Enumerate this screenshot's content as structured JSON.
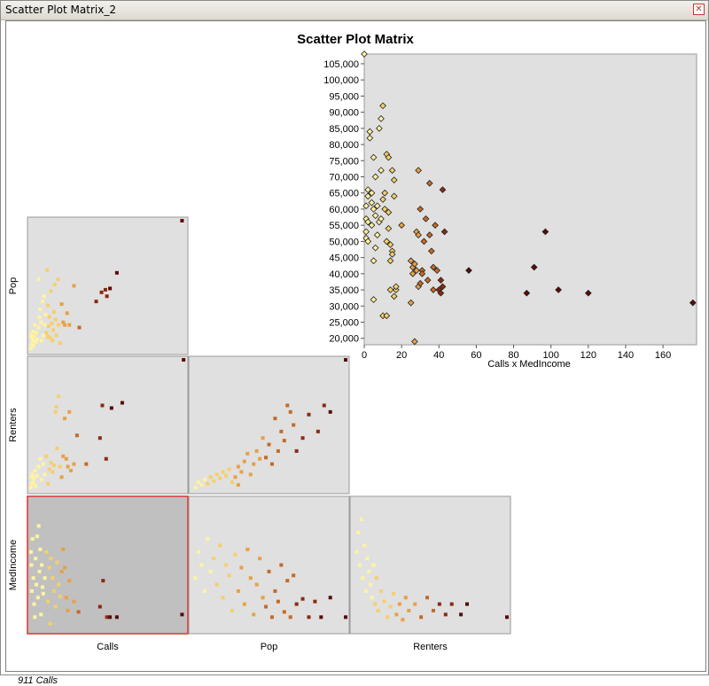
{
  "window": {
    "title": "Scatter Plot Matrix_2"
  },
  "status": {
    "label": "911 Calls"
  },
  "colors": {
    "panel_bg": "#e0e0e0",
    "selected_panel_bg": "#c0c0c0",
    "selected_border": "#e03030",
    "ramp": [
      "#fff3a0",
      "#f5cf6a",
      "#e8a045",
      "#c46a28",
      "#8a2a12",
      "#5a0a05"
    ]
  },
  "chart_data": [
    {
      "type": "scatter",
      "title": "Scatter Plot Matrix",
      "xlabel": "Calls x MedIncome",
      "ylabel": "",
      "xlim": [
        0,
        178
      ],
      "ylim": [
        18000,
        108000
      ],
      "xticks": [
        "0",
        "20",
        "40",
        "60",
        "80",
        "100",
        "120",
        "140",
        "160"
      ],
      "yticks": [
        "20,000",
        "25,000",
        "30,000",
        "35,000",
        "40,000",
        "45,000",
        "50,000",
        "55,000",
        "60,000",
        "65,000",
        "70,000",
        "75,000",
        "80,000",
        "85,000",
        "90,000",
        "95,000",
        "100,000",
        "105,000"
      ],
      "marker": "diamond",
      "points": [
        [
          0,
          108000
        ],
        [
          1,
          51000
        ],
        [
          1,
          53000
        ],
        [
          1,
          57000
        ],
        [
          1,
          61000
        ],
        [
          2,
          64000
        ],
        [
          2,
          56000
        ],
        [
          2,
          66000
        ],
        [
          2,
          50000
        ],
        [
          3,
          82000
        ],
        [
          3,
          84000
        ],
        [
          4,
          55000
        ],
        [
          4,
          65000
        ],
        [
          4,
          62000
        ],
        [
          5,
          60000
        ],
        [
          5,
          76000
        ],
        [
          5,
          44000
        ],
        [
          5,
          32000
        ],
        [
          6,
          48000
        ],
        [
          6,
          70000
        ],
        [
          6,
          58000
        ],
        [
          7,
          61000
        ],
        [
          7,
          52000
        ],
        [
          8,
          56000
        ],
        [
          8,
          85000
        ],
        [
          9,
          88000
        ],
        [
          9,
          57000
        ],
        [
          9,
          72000
        ],
        [
          10,
          27000
        ],
        [
          10,
          92000
        ],
        [
          10,
          63000
        ],
        [
          11,
          60000
        ],
        [
          11,
          65000
        ],
        [
          12,
          77000
        ],
        [
          12,
          50000
        ],
        [
          12,
          27000
        ],
        [
          13,
          76000
        ],
        [
          13,
          59000
        ],
        [
          13,
          54000
        ],
        [
          14,
          44000
        ],
        [
          14,
          49000
        ],
        [
          14,
          35000
        ],
        [
          15,
          72000
        ],
        [
          15,
          47000
        ],
        [
          15,
          46000
        ],
        [
          16,
          69000
        ],
        [
          16,
          64000
        ],
        [
          16,
          33000
        ],
        [
          17,
          35000
        ],
        [
          17,
          36000
        ],
        [
          20,
          55000
        ],
        [
          25,
          31000
        ],
        [
          25,
          44000
        ],
        [
          26,
          42000
        ],
        [
          26,
          40000
        ],
        [
          27,
          19000
        ],
        [
          27,
          43000
        ],
        [
          28,
          41000
        ],
        [
          28,
          53000
        ],
        [
          29,
          72000
        ],
        [
          29,
          52000
        ],
        [
          29,
          36000
        ],
        [
          30,
          37000
        ],
        [
          30,
          60000
        ],
        [
          31,
          41000
        ],
        [
          31,
          40000
        ],
        [
          32,
          50000
        ],
        [
          33,
          57000
        ],
        [
          34,
          38000
        ],
        [
          35,
          68000
        ],
        [
          35,
          52000
        ],
        [
          36,
          47000
        ],
        [
          37,
          35000
        ],
        [
          37,
          42000
        ],
        [
          38,
          55000
        ],
        [
          39,
          41000
        ],
        [
          40,
          35000
        ],
        [
          41,
          34000
        ],
        [
          41,
          38000
        ],
        [
          42,
          36000
        ],
        [
          42,
          66000
        ],
        [
          43,
          53000
        ],
        [
          56,
          41000
        ],
        [
          87,
          34000
        ],
        [
          91,
          42000
        ],
        [
          97,
          53000
        ],
        [
          104,
          35000
        ],
        [
          120,
          34000
        ],
        [
          176,
          31000
        ]
      ]
    },
    {
      "type": "scatter",
      "title": "",
      "xlabel": "Calls",
      "ylabel": "Pop",
      "marker": "square",
      "points": [
        [
          0,
          0.02
        ],
        [
          0.005,
          0.12
        ],
        [
          0.01,
          0.05
        ],
        [
          0.015,
          0.1
        ],
        [
          0.02,
          0.08
        ],
        [
          0.025,
          0.15
        ],
        [
          0.03,
          0.04
        ],
        [
          0.04,
          0.11
        ],
        [
          0.05,
          0.2
        ],
        [
          0.06,
          0.07
        ],
        [
          0.07,
          0.14
        ],
        [
          0.08,
          0.09
        ],
        [
          0.1,
          0.18
        ],
        [
          0.1,
          0.55
        ],
        [
          0.11,
          0.26
        ],
        [
          0.12,
          0.32
        ],
        [
          0.13,
          0.22
        ],
        [
          0.14,
          0.08
        ],
        [
          0.15,
          0.38
        ],
        [
          0.16,
          0.12
        ],
        [
          0.17,
          0.42
        ],
        [
          0.18,
          0.2
        ],
        [
          0.19,
          0.28
        ],
        [
          0.2,
          0.14
        ],
        [
          0.21,
          0.62
        ],
        [
          0.22,
          0.11
        ],
        [
          0.22,
          0.35
        ],
        [
          0.23,
          0.19
        ],
        [
          0.24,
          0.26
        ],
        [
          0.25,
          0.1
        ],
        [
          0.26,
          0.46
        ],
        [
          0.27,
          0.21
        ],
        [
          0.28,
          0.08
        ],
        [
          0.29,
          0.16
        ],
        [
          0.3,
          0.3
        ],
        [
          0.31,
          0.51
        ],
        [
          0.32,
          0.24
        ],
        [
          0.33,
          0.12
        ],
        [
          0.35,
          0.55
        ],
        [
          0.36,
          0.2
        ],
        [
          0.38,
          0.06
        ],
        [
          0.4,
          0.36
        ],
        [
          0.42,
          0.22
        ],
        [
          0.44,
          0.2
        ],
        [
          0.47,
          0.29
        ],
        [
          0.5,
          0.2
        ],
        [
          0.56,
          0.5
        ],
        [
          0.63,
          0.18
        ],
        [
          0.85,
          0.38
        ],
        [
          0.92,
          0.45
        ],
        [
          0.97,
          0.47
        ],
        [
          0.99,
          0.42
        ],
        [
          1.03,
          0.48
        ],
        [
          1.12,
          0.6
        ],
        [
          1.97,
          1.0
        ]
      ]
    },
    {
      "type": "scatter",
      "title": "",
      "xlabel": "Calls",
      "ylabel": "Renters",
      "marker": "square",
      "points": [
        [
          0,
          0.02
        ],
        [
          0.005,
          0.1
        ],
        [
          0.01,
          0.05
        ],
        [
          0.02,
          0.12
        ],
        [
          0.03,
          0.06
        ],
        [
          0.04,
          0.09
        ],
        [
          0.05,
          0.15
        ],
        [
          0.06,
          0.03
        ],
        [
          0.08,
          0.11
        ],
        [
          0.1,
          0.18
        ],
        [
          0.12,
          0.24
        ],
        [
          0.14,
          0.08
        ],
        [
          0.16,
          0.2
        ],
        [
          0.18,
          0.12
        ],
        [
          0.2,
          0.26
        ],
        [
          0.22,
          0.05
        ],
        [
          0.24,
          0.16
        ],
        [
          0.26,
          0.21
        ],
        [
          0.28,
          0.14
        ],
        [
          0.3,
          0.19
        ],
        [
          0.32,
          0.6
        ],
        [
          0.33,
          0.64
        ],
        [
          0.34,
          0.32
        ],
        [
          0.36,
          0.72
        ],
        [
          0.38,
          0.18
        ],
        [
          0.4,
          0.1
        ],
        [
          0.42,
          0.26
        ],
        [
          0.44,
          0.55
        ],
        [
          0.46,
          0.24
        ],
        [
          0.48,
          0.18
        ],
        [
          0.5,
          0.6
        ],
        [
          0.52,
          0.15
        ],
        [
          0.56,
          0.2
        ],
        [
          0.6,
          0.42
        ],
        [
          0.72,
          0.2
        ],
        [
          0.9,
          0.4
        ],
        [
          0.93,
          0.65
        ],
        [
          0.98,
          0.24
        ],
        [
          1.05,
          0.63
        ],
        [
          1.19,
          0.67
        ],
        [
          1.99,
          1.0
        ]
      ]
    },
    {
      "type": "scatter",
      "title": "",
      "xlabel": "Calls",
      "ylabel": "MedIncome",
      "marker": "square",
      "selected": true,
      "points": [
        [
          0,
          0.6
        ],
        [
          0.005,
          0.5
        ],
        [
          0.01,
          0.3
        ],
        [
          0.02,
          0.7
        ],
        [
          0.03,
          0.4
        ],
        [
          0.04,
          0.2
        ],
        [
          0.05,
          0.1
        ],
        [
          0.06,
          0.55
        ],
        [
          0.07,
          0.35
        ],
        [
          0.08,
          0.72
        ],
        [
          0.09,
          0.25
        ],
        [
          0.1,
          0.8
        ],
        [
          0.11,
          0.45
        ],
        [
          0.12,
          0.62
        ],
        [
          0.13,
          0.12
        ],
        [
          0.14,
          0.5
        ],
        [
          0.15,
          0.33
        ],
        [
          0.16,
          0.28
        ],
        [
          0.18,
          0.4
        ],
        [
          0.2,
          0.6
        ],
        [
          0.22,
          0.22
        ],
        [
          0.24,
          0.48
        ],
        [
          0.25,
          0.05
        ],
        [
          0.26,
          0.55
        ],
        [
          0.28,
          0.4
        ],
        [
          0.3,
          0.3
        ],
        [
          0.32,
          0.18
        ],
        [
          0.34,
          0.52
        ],
        [
          0.36,
          0.35
        ],
        [
          0.38,
          0.26
        ],
        [
          0.4,
          0.45
        ],
        [
          0.42,
          0.62
        ],
        [
          0.44,
          0.48
        ],
        [
          0.46,
          0.25
        ],
        [
          0.48,
          0.15
        ],
        [
          0.5,
          0.38
        ],
        [
          0.56,
          0.22
        ],
        [
          0.62,
          0.14
        ],
        [
          0.9,
          0.18
        ],
        [
          0.94,
          0.38
        ],
        [
          0.99,
          0.1
        ],
        [
          1.03,
          0.1
        ],
        [
          1.12,
          0.1
        ],
        [
          1.97,
          0.12
        ]
      ]
    },
    {
      "type": "scatter",
      "title": "",
      "xlabel": "Pop",
      "ylabel": "Renters",
      "marker": "square",
      "points": [
        [
          0.02,
          0.02
        ],
        [
          0.04,
          0.06
        ],
        [
          0.06,
          0.04
        ],
        [
          0.08,
          0.08
        ],
        [
          0.1,
          0.05
        ],
        [
          0.12,
          0.1
        ],
        [
          0.14,
          0.07
        ],
        [
          0.16,
          0.12
        ],
        [
          0.18,
          0.09
        ],
        [
          0.2,
          0.14
        ],
        [
          0.22,
          0.11
        ],
        [
          0.24,
          0.16
        ],
        [
          0.26,
          0.06
        ],
        [
          0.28,
          0.1
        ],
        [
          0.3,
          0.18
        ],
        [
          0.3,
          0.04
        ],
        [
          0.32,
          0.14
        ],
        [
          0.34,
          0.22
        ],
        [
          0.36,
          0.28
        ],
        [
          0.38,
          0.12
        ],
        [
          0.4,
          0.2
        ],
        [
          0.42,
          0.3
        ],
        [
          0.44,
          0.24
        ],
        [
          0.46,
          0.4
        ],
        [
          0.48,
          0.25
        ],
        [
          0.5,
          0.35
        ],
        [
          0.52,
          0.2
        ],
        [
          0.54,
          0.55
        ],
        [
          0.56,
          0.3
        ],
        [
          0.58,
          0.45
        ],
        [
          0.6,
          0.38
        ],
        [
          0.62,
          0.65
        ],
        [
          0.64,
          0.6
        ],
        [
          0.66,
          0.5
        ],
        [
          0.68,
          0.3
        ],
        [
          0.72,
          0.4
        ],
        [
          0.76,
          0.58
        ],
        [
          0.82,
          0.45
        ],
        [
          0.86,
          0.65
        ],
        [
          0.9,
          0.6
        ],
        [
          1.0,
          1.0
        ]
      ]
    },
    {
      "type": "scatter",
      "title": "",
      "xlabel": "Pop",
      "ylabel": "MedIncome",
      "marker": "square",
      "points": [
        [
          0.02,
          0.4
        ],
        [
          0.04,
          0.6
        ],
        [
          0.06,
          0.5
        ],
        [
          0.08,
          0.3
        ],
        [
          0.1,
          0.7
        ],
        [
          0.12,
          0.45
        ],
        [
          0.14,
          0.55
        ],
        [
          0.16,
          0.35
        ],
        [
          0.18,
          0.65
        ],
        [
          0.2,
          0.25
        ],
        [
          0.22,
          0.5
        ],
        [
          0.24,
          0.42
        ],
        [
          0.26,
          0.15
        ],
        [
          0.28,
          0.58
        ],
        [
          0.3,
          0.3
        ],
        [
          0.32,
          0.48
        ],
        [
          0.34,
          0.2
        ],
        [
          0.36,
          0.62
        ],
        [
          0.38,
          0.4
        ],
        [
          0.4,
          0.12
        ],
        [
          0.42,
          0.35
        ],
        [
          0.44,
          0.55
        ],
        [
          0.46,
          0.25
        ],
        [
          0.48,
          0.18
        ],
        [
          0.5,
          0.45
        ],
        [
          0.52,
          0.1
        ],
        [
          0.54,
          0.3
        ],
        [
          0.56,
          0.22
        ],
        [
          0.58,
          0.5
        ],
        [
          0.6,
          0.14
        ],
        [
          0.62,
          0.38
        ],
        [
          0.64,
          0.1
        ],
        [
          0.66,
          0.42
        ],
        [
          0.68,
          0.2
        ],
        [
          0.72,
          0.24
        ],
        [
          0.76,
          0.1
        ],
        [
          0.8,
          0.22
        ],
        [
          0.84,
          0.1
        ],
        [
          0.9,
          0.25
        ],
        [
          1.0,
          0.1
        ]
      ]
    },
    {
      "type": "scatter",
      "title": "",
      "xlabel": "Renters",
      "ylabel": "MedIncome",
      "marker": "square",
      "points": [
        [
          0.02,
          0.6
        ],
        [
          0.03,
          0.75
        ],
        [
          0.04,
          0.5
        ],
        [
          0.05,
          0.85
        ],
        [
          0.06,
          0.4
        ],
        [
          0.07,
          0.65
        ],
        [
          0.08,
          0.3
        ],
        [
          0.09,
          0.55
        ],
        [
          0.1,
          0.45
        ],
        [
          0.11,
          0.35
        ],
        [
          0.12,
          0.25
        ],
        [
          0.13,
          0.5
        ],
        [
          0.14,
          0.2
        ],
        [
          0.15,
          0.4
        ],
        [
          0.16,
          0.15
        ],
        [
          0.18,
          0.3
        ],
        [
          0.2,
          0.22
        ],
        [
          0.22,
          0.1
        ],
        [
          0.24,
          0.18
        ],
        [
          0.26,
          0.28
        ],
        [
          0.28,
          0.12
        ],
        [
          0.3,
          0.2
        ],
        [
          0.32,
          0.08
        ],
        [
          0.34,
          0.25
        ],
        [
          0.36,
          0.15
        ],
        [
          0.4,
          0.2
        ],
        [
          0.44,
          0.1
        ],
        [
          0.48,
          0.25
        ],
        [
          0.52,
          0.15
        ],
        [
          0.56,
          0.2
        ],
        [
          0.6,
          0.12
        ],
        [
          0.64,
          0.2
        ],
        [
          0.7,
          0.12
        ],
        [
          0.74,
          0.2
        ],
        [
          1.0,
          0.1
        ]
      ]
    }
  ]
}
